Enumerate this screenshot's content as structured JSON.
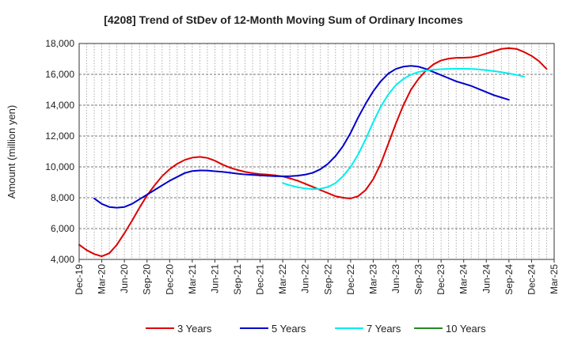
{
  "chart_data": {
    "type": "line",
    "title": "[4208]  Trend of StDev of 12-Month Moving Sum of Ordinary Incomes",
    "xlabel": "",
    "ylabel": "Amount (million yen)",
    "ylim": [
      4000,
      18000
    ],
    "yticks": [
      4000,
      6000,
      8000,
      10000,
      12000,
      14000,
      16000,
      18000
    ],
    "ytick_labels": [
      "4,000",
      "6,000",
      "8,000",
      "10,000",
      "12,000",
      "14,000",
      "16,000",
      "18,000"
    ],
    "x_start": "Dec-19",
    "x_tick_labels": [
      "Dec-19",
      "Mar-20",
      "Jun-20",
      "Sep-20",
      "Dec-20",
      "Mar-21",
      "Jun-21",
      "Sep-21",
      "Dec-21",
      "Mar-22",
      "Jun-22",
      "Sep-22",
      "Dec-22",
      "Mar-23",
      "Jun-23",
      "Sep-23",
      "Dec-23",
      "Mar-24",
      "Jun-24",
      "Sep-24",
      "Dec-24",
      "Mar-25"
    ],
    "x_month_count": 63,
    "grid": true,
    "legend_position": "bottom",
    "series": [
      {
        "name": "3 Years",
        "color": "#dd0000",
        "start_month": 0,
        "values": [
          4950,
          4600,
          4350,
          4200,
          4400,
          4950,
          5700,
          6500,
          7350,
          8150,
          8800,
          9400,
          9850,
          10200,
          10450,
          10600,
          10650,
          10580,
          10400,
          10150,
          9950,
          9800,
          9680,
          9590,
          9530,
          9500,
          9450,
          9380,
          9250,
          9100,
          8900,
          8700,
          8500,
          8300,
          8100,
          8000,
          7950,
          8100,
          8500,
          9200,
          10200,
          11500,
          12800,
          14000,
          15000,
          15700,
          16250,
          16650,
          16900,
          17020,
          17070,
          17080,
          17100,
          17200,
          17350,
          17500,
          17650,
          17700,
          17650,
          17450,
          17200,
          16850,
          16350
        ]
      },
      {
        "name": "5 Years",
        "color": "#0000cc",
        "start_month": 2,
        "values": [
          7950,
          7600,
          7400,
          7350,
          7400,
          7600,
          7900,
          8200,
          8500,
          8800,
          9100,
          9350,
          9600,
          9730,
          9770,
          9760,
          9720,
          9680,
          9620,
          9560,
          9510,
          9480,
          9450,
          9420,
          9400,
          9390,
          9400,
          9430,
          9500,
          9620,
          9850,
          10200,
          10700,
          11350,
          12200,
          13200,
          14100,
          14900,
          15550,
          16050,
          16350,
          16500,
          16550,
          16500,
          16350,
          16150,
          15950,
          15750,
          15550,
          15400,
          15250,
          15050,
          14850,
          14650,
          14500,
          14350
        ]
      },
      {
        "name": "7 Years",
        "color": "#00eeee",
        "start_month": 27,
        "values": [
          8950,
          8800,
          8680,
          8600,
          8560,
          8580,
          8700,
          8950,
          9400,
          10000,
          10800,
          11800,
          12900,
          13900,
          14700,
          15300,
          15700,
          15980,
          16150,
          16250,
          16300,
          16330,
          16350,
          16360,
          16360,
          16350,
          16320,
          16270,
          16210,
          16140,
          16060,
          15970,
          15850
        ]
      },
      {
        "name": "10 Years",
        "color": "#228b22",
        "start_month": 0,
        "values": []
      }
    ]
  }
}
